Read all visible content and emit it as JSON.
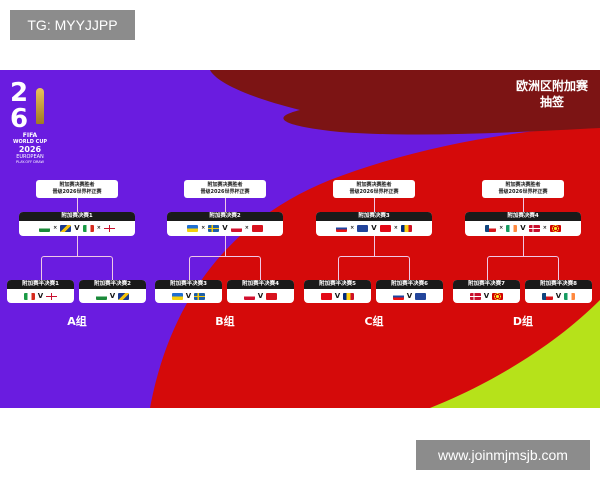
{
  "watermark_top": "TG: MYYJJPP",
  "watermark_bottom": "www.joinmjmsjb.com",
  "poster": {
    "title_line1": "欧洲区附加赛",
    "title_line2": "抽签",
    "logo": {
      "number_top": "2",
      "number_bottom": "6",
      "fifa": "FIFA",
      "line1": "WORLD CUP",
      "line2": "2026",
      "line3": "EUROPEAN",
      "line4": "PLAY-OFF DRAW"
    },
    "colors": {
      "purple": "#6a1ce0",
      "red": "#d50a0a",
      "maroon": "#7c1414",
      "lime": "#b6e21a"
    },
    "versus": "V",
    "groups": [
      {
        "label": "A组",
        "winner_line1": "附加赛决赛胜者",
        "winner_line2": "晋级2026世界杯正赛",
        "final_label": "附加赛决赛1",
        "final_flags": [
          "wal",
          "bih",
          "ita",
          "nir"
        ],
        "semis": [
          {
            "label": "附加赛半决赛1",
            "flags": [
              "ita",
              "nir"
            ]
          },
          {
            "label": "附加赛半决赛2",
            "flags": [
              "wal",
              "bih"
            ]
          }
        ]
      },
      {
        "label": "B组",
        "winner_line1": "附加赛决赛胜者",
        "winner_line2": "晋级2026世界杯正赛",
        "final_label": "附加赛决赛2",
        "final_flags": [
          "ukr",
          "swe",
          "pol",
          "alb"
        ],
        "semis": [
          {
            "label": "附加赛半决赛3",
            "flags": [
              "ukr",
              "swe"
            ]
          },
          {
            "label": "附加赛半决赛4",
            "flags": [
              "pol",
              "alb"
            ]
          }
        ]
      },
      {
        "label": "C组",
        "winner_line1": "附加赛决赛胜者",
        "winner_line2": "晋级2026世界杯正赛",
        "final_label": "附加赛决赛3",
        "final_flags": [
          "svk",
          "kos",
          "tur",
          "rou"
        ],
        "semis": [
          {
            "label": "附加赛半决赛5",
            "flags": [
              "tur",
              "rou"
            ]
          },
          {
            "label": "附加赛半决赛6",
            "flags": [
              "svk",
              "kos"
            ]
          }
        ]
      },
      {
        "label": "D组",
        "winner_line1": "附加赛决赛胜者",
        "winner_line2": "晋级2026世界杯正赛",
        "final_label": "附加赛决赛4",
        "final_flags": [
          "cze",
          "irl",
          "den",
          "mkd"
        ],
        "semis": [
          {
            "label": "附加赛半决赛7",
            "flags": [
              "den",
              "mkd"
            ]
          },
          {
            "label": "附加赛半决赛8",
            "flags": [
              "cze",
              "irl"
            ]
          }
        ]
      }
    ]
  }
}
